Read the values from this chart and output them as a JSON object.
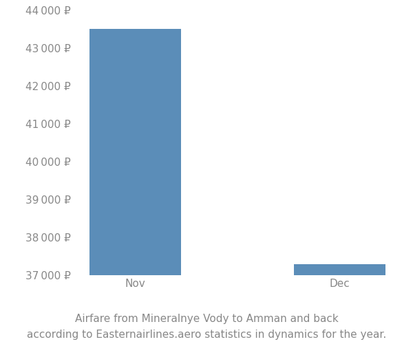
{
  "categories": [
    "Nov",
    "Dec"
  ],
  "values": [
    43500,
    37300
  ],
  "bar_color": "#5b8db8",
  "background_color": "#ffffff",
  "text_color": "#888888",
  "ylim": [
    37000,
    44000
  ],
  "yticks": [
    37000,
    38000,
    39000,
    40000,
    41000,
    42000,
    43000,
    44000
  ],
  "caption_line1": "Airfare from Mineralnye Vody to Amman and back",
  "caption_line2": "according to Easternairlines.aero statistics in dynamics for the year.",
  "caption_fontsize": 11,
  "tick_fontsize": 11,
  "bar_width": 0.45
}
